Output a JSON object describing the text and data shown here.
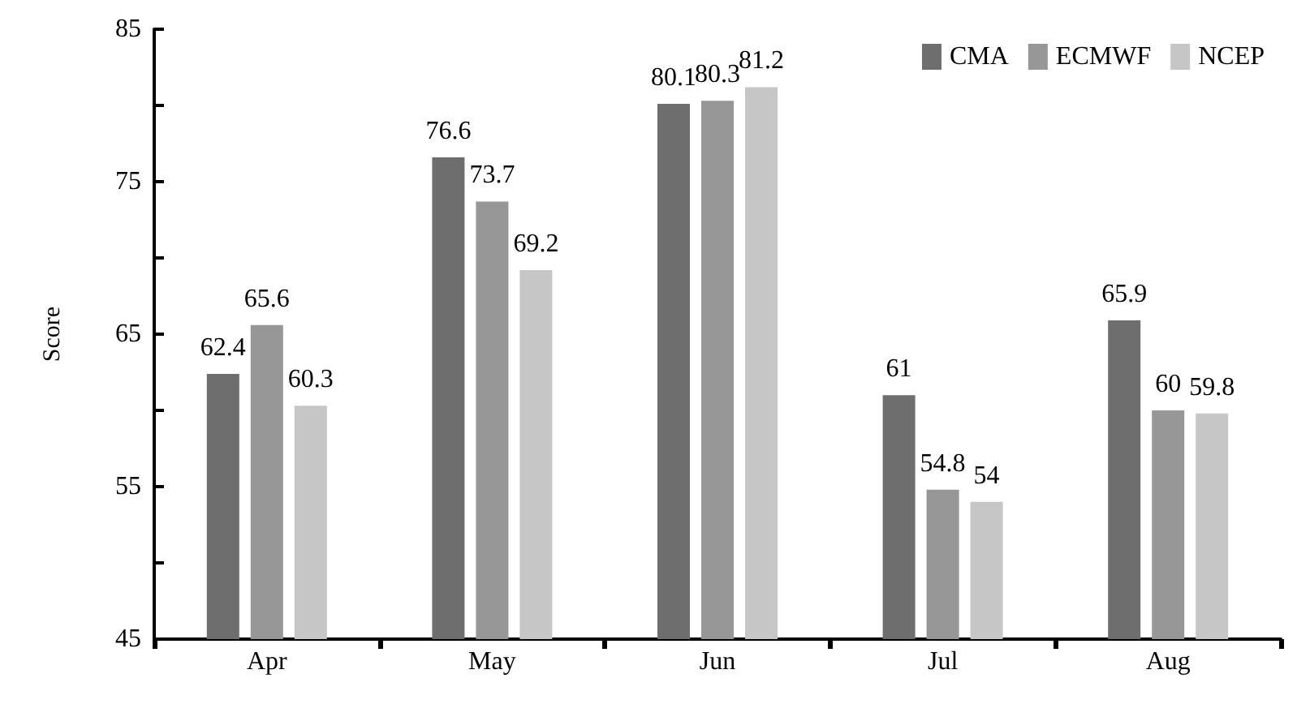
{
  "chart_data": {
    "type": "bar",
    "ylabel": "Score",
    "categories": [
      "Apr",
      "May",
      "Jun",
      "Jul",
      "Aug"
    ],
    "series": [
      {
        "name": "CMA",
        "color": "#6e6e6e",
        "values": [
          62.4,
          76.6,
          80.1,
          61,
          65.9
        ]
      },
      {
        "name": "ECMWF",
        "color": "#979797",
        "values": [
          65.6,
          73.7,
          80.3,
          54.8,
          60
        ]
      },
      {
        "name": "NCEP",
        "color": "#c6c6c6",
        "values": [
          60.3,
          69.2,
          81.2,
          54,
          59.8
        ]
      }
    ],
    "ylim": [
      45,
      85
    ],
    "yticks": [
      45,
      {
        "value": 50,
        "label": null
      },
      55,
      {
        "value": 60,
        "label": null
      },
      65,
      {
        "value": 70,
        "label": null
      },
      75,
      {
        "value": 80,
        "label": null
      },
      85
    ],
    "data_labels": true,
    "legend": "top right",
    "grid": false
  }
}
